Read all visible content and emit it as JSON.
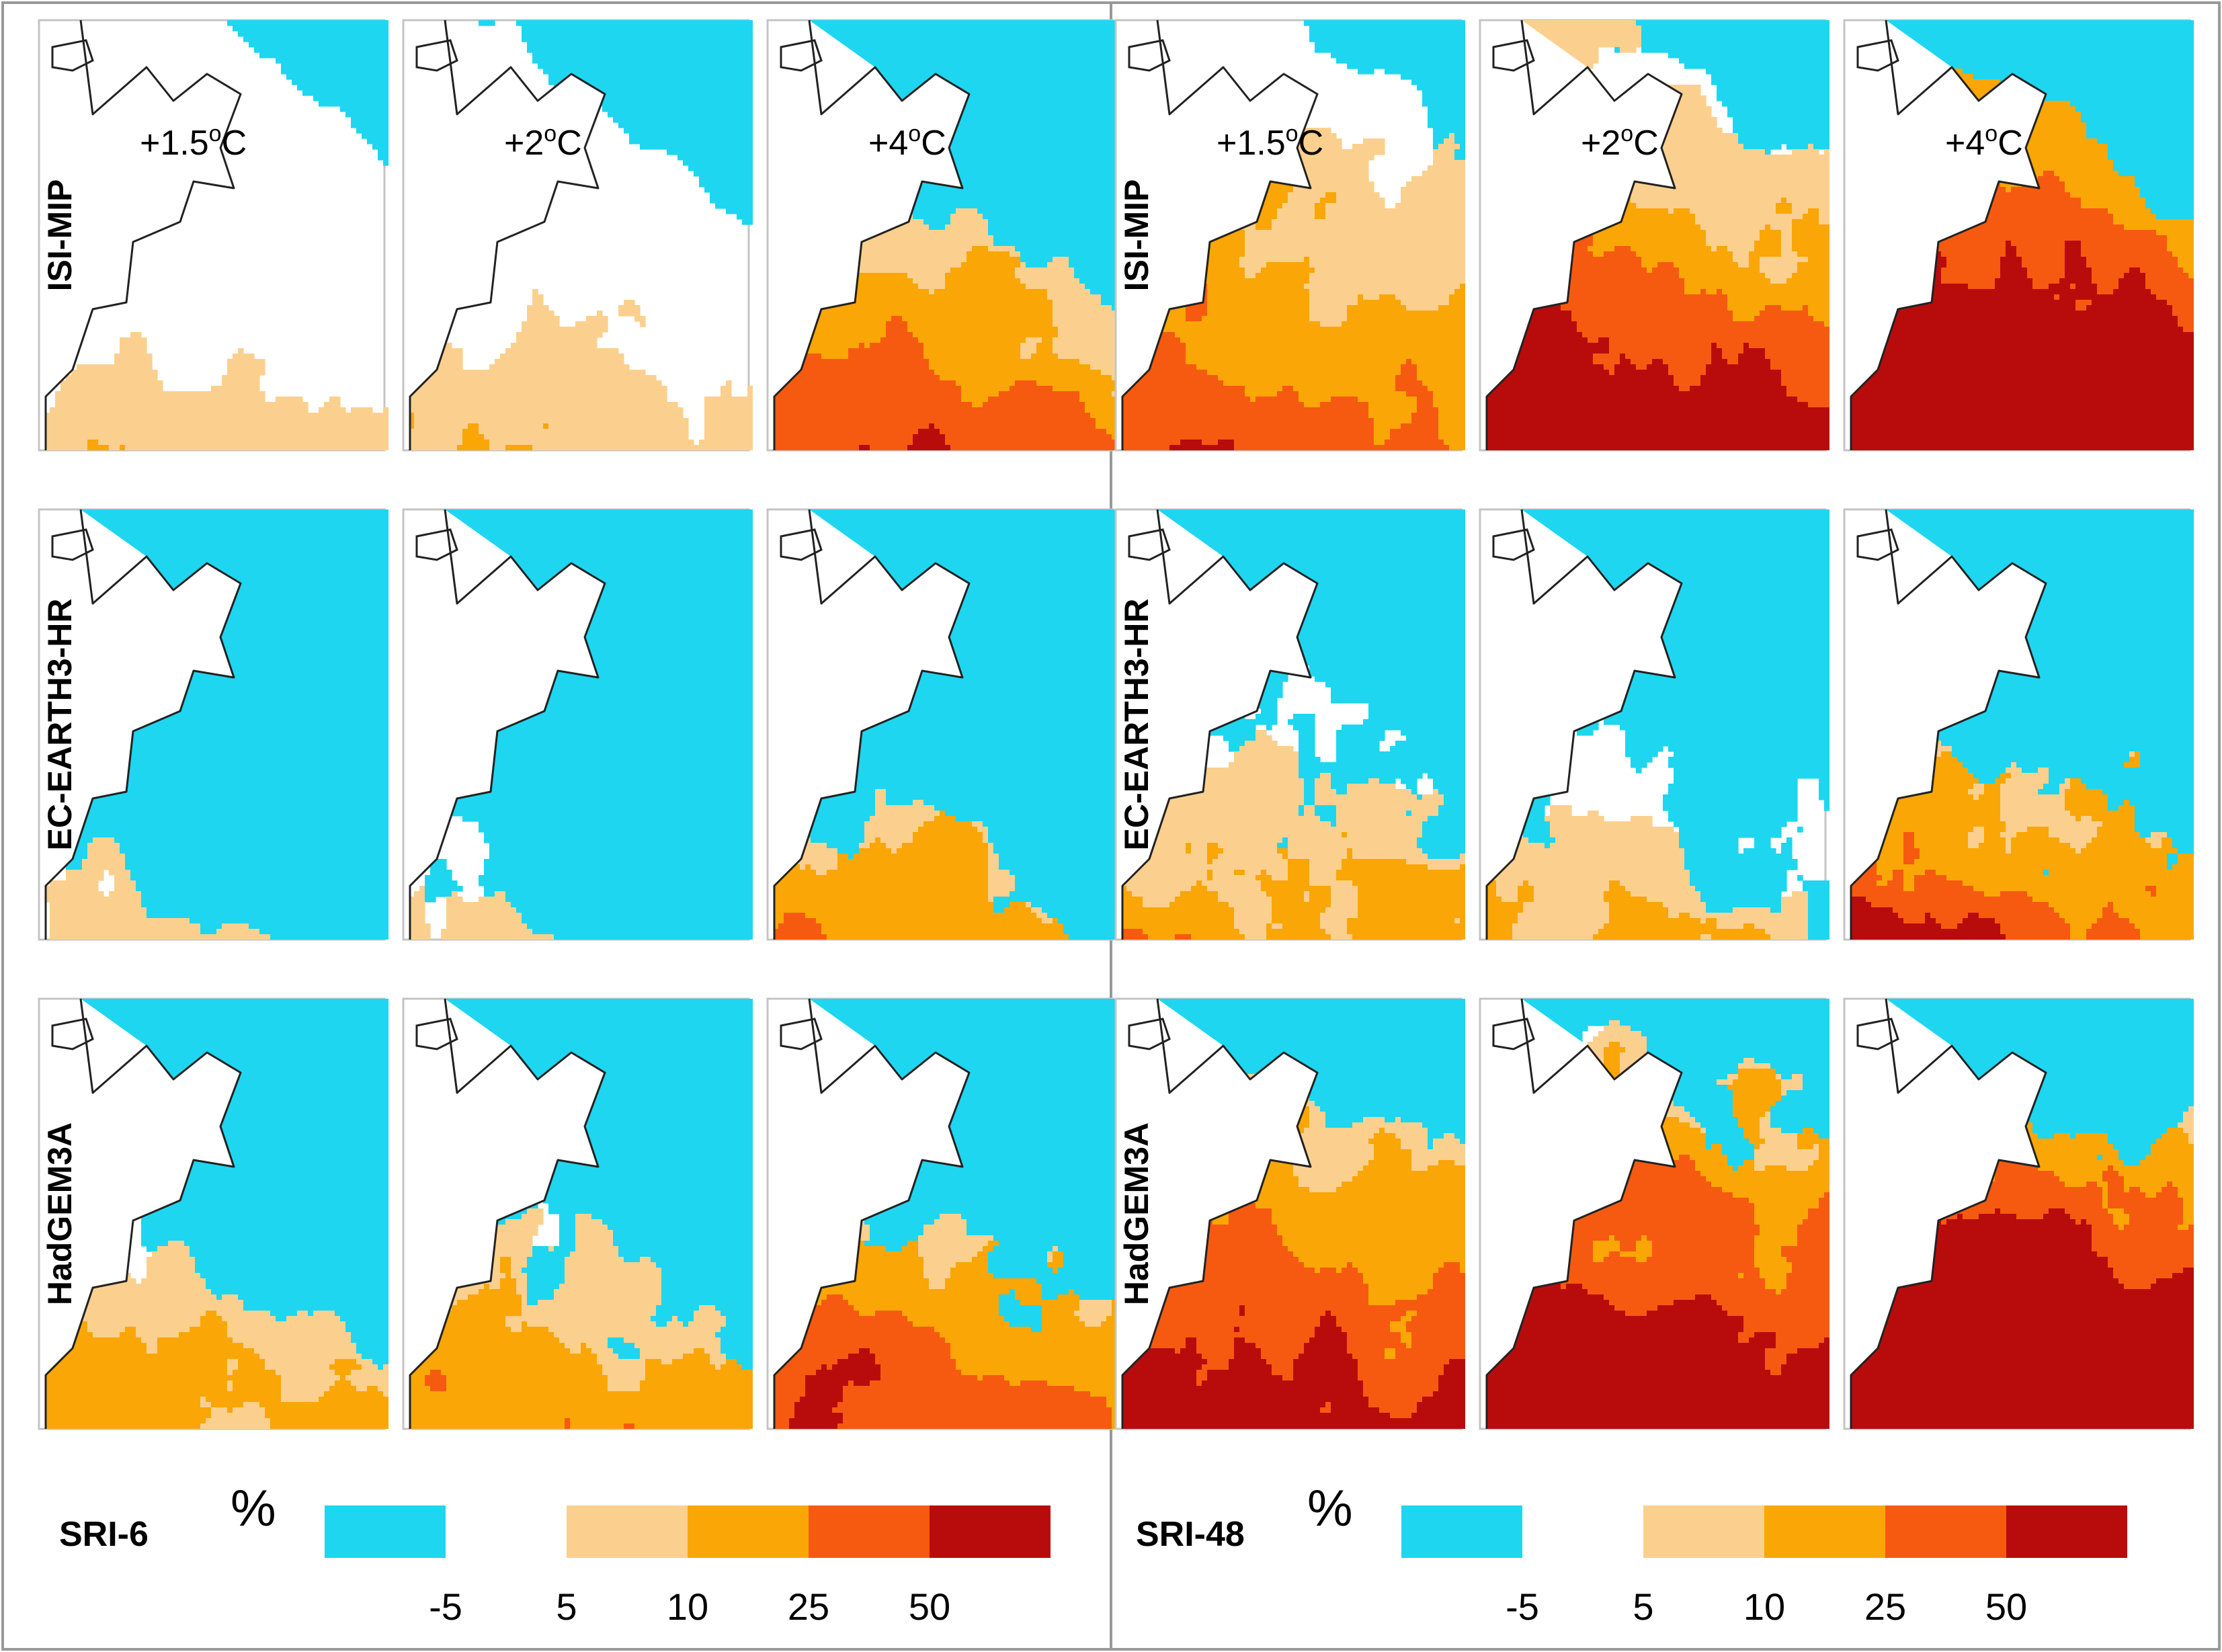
{
  "figure": {
    "sections": [
      {
        "index_label": "SRI-6",
        "unit_symbol": "%",
        "columns": [
          {
            "label_main": "+1.5",
            "label_sup": "o",
            "label_unit": "C"
          },
          {
            "label_main": "+2",
            "label_sup": "o",
            "label_unit": "C"
          },
          {
            "label_main": "+4",
            "label_sup": "o",
            "label_unit": "C"
          }
        ],
        "rows": [
          {
            "label": "ISI-MIP"
          },
          {
            "label": "EC-EARTH3-HR"
          },
          {
            "label": "HadGEM3A"
          }
        ],
        "maps": [
          [
            {
              "blue_level": 0.05,
              "warm_level": 0.08,
              "warm_intensity": 0.4,
              "blue_noise": 0.0
            },
            {
              "blue_level": 0.18,
              "warm_level": 0.2,
              "warm_intensity": 0.3,
              "blue_noise": 0.0
            },
            {
              "blue_level": 0.45,
              "warm_level": 0.6,
              "warm_intensity": 0.55,
              "blue_noise": 0.05
            }
          ],
          [
            {
              "blue_level": 0.75,
              "warm_level": 0.02,
              "warm_intensity": 0.3,
              "blue_noise": 0.3
            },
            {
              "blue_level": 0.8,
              "warm_level": 0.0,
              "warm_intensity": 0.3,
              "blue_noise": 0.3
            },
            {
              "blue_level": 0.8,
              "warm_level": 0.35,
              "warm_intensity": 0.5,
              "blue_noise": 0.35
            }
          ],
          [
            {
              "blue_level": 0.55,
              "warm_level": 0.35,
              "warm_intensity": 0.45,
              "blue_noise": 0.5
            },
            {
              "blue_level": 0.6,
              "warm_level": 0.45,
              "warm_intensity": 0.45,
              "blue_noise": 0.5
            },
            {
              "blue_level": 0.65,
              "warm_level": 0.6,
              "warm_intensity": 0.6,
              "blue_noise": 0.45
            }
          ]
        ]
      },
      {
        "index_label": "SRI-48",
        "unit_symbol": "%",
        "columns": [
          {
            "label_main": "+1.5",
            "label_sup": "o",
            "label_unit": "C"
          },
          {
            "label_main": "+2",
            "label_sup": "o",
            "label_unit": "C"
          },
          {
            "label_main": "+4",
            "label_sup": "o",
            "label_unit": "C"
          }
        ],
        "rows": [
          {
            "label": "ISI-MIP"
          },
          {
            "label": "EC-EARTH3-HR"
          },
          {
            "label": "HadGEM3A"
          }
        ],
        "maps": [
          [
            {
              "blue_level": 0.08,
              "warm_level": 0.7,
              "warm_intensity": 0.45,
              "blue_noise": 0.0
            },
            {
              "blue_level": 0.15,
              "warm_level": 0.8,
              "warm_intensity": 0.7,
              "blue_noise": 0.0
            },
            {
              "blue_level": 0.4,
              "warm_level": 0.85,
              "warm_intensity": 0.85,
              "blue_noise": 0.05
            }
          ],
          [
            {
              "blue_level": 0.55,
              "warm_level": 0.3,
              "warm_intensity": 0.5,
              "blue_noise": 0.55
            },
            {
              "blue_level": 0.55,
              "warm_level": 0.15,
              "warm_intensity": 0.45,
              "blue_noise": 0.55
            },
            {
              "blue_level": 0.6,
              "warm_level": 0.45,
              "warm_intensity": 0.7,
              "blue_noise": 0.45
            }
          ],
          [
            {
              "blue_level": 0.35,
              "warm_level": 0.8,
              "warm_intensity": 0.6,
              "blue_noise": 0.4
            },
            {
              "blue_level": 0.35,
              "warm_level": 0.85,
              "warm_intensity": 0.75,
              "blue_noise": 0.4
            },
            {
              "blue_level": 0.35,
              "warm_level": 0.9,
              "warm_intensity": 0.9,
              "blue_noise": 0.35
            }
          ]
        ]
      }
    ],
    "legend": {
      "colors": [
        "#1ed6f0",
        "#ffffff",
        "#fbd08e",
        "#f9a606",
        "#f65a10",
        "#b80c0c"
      ],
      "ticks": [
        "-5",
        "5",
        "10",
        "25",
        "50"
      ]
    },
    "coast_color": "#222222"
  }
}
